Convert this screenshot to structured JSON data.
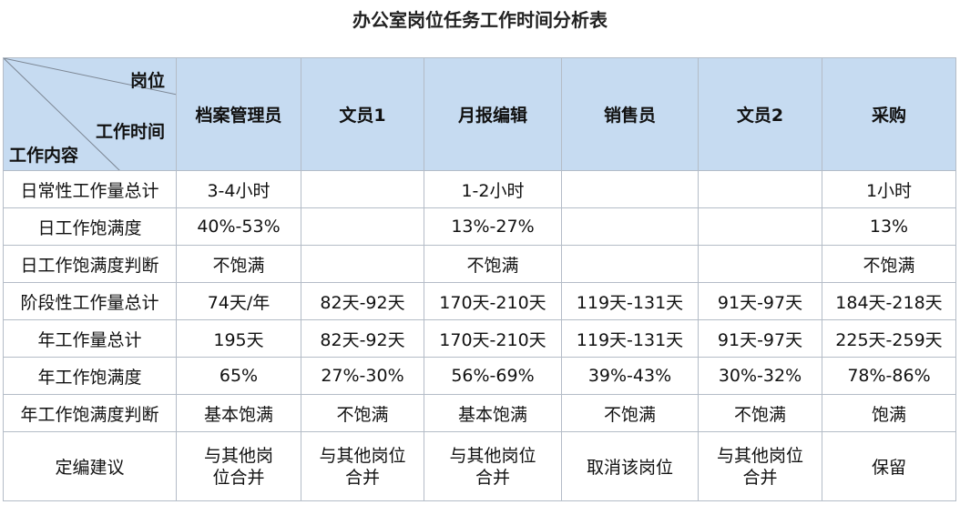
{
  "title": "办公室岗位任务工作时间分析表",
  "header": {
    "corner_position": "岗位",
    "corner_time": "工作时间",
    "corner_content": "工作内容",
    "columns": [
      "档案管理员",
      "文员1",
      "月报编辑",
      "销售员",
      "文员2",
      "采购"
    ]
  },
  "rows": [
    {
      "label": "日常性工作量总计",
      "cells": [
        "3-4小时",
        "",
        "1-2小时",
        "",
        "",
        "1小时"
      ]
    },
    {
      "label": "日工作饱满度",
      "cells": [
        "40%-53%",
        "",
        "13%-27%",
        "",
        "",
        "13%"
      ]
    },
    {
      "label": "日工作饱满度判断",
      "cells": [
        "不饱满",
        "",
        "不饱满",
        "",
        "",
        "不饱满"
      ]
    },
    {
      "label": "阶段性工作量总计",
      "cells": [
        "74天/年",
        "82天-92天",
        "170天-210天",
        "119天-131天",
        "91天-97天",
        "184天-218天"
      ]
    },
    {
      "label": "年工作量总计",
      "cells": [
        "195天",
        "82天-92天",
        "170天-210天",
        "119天-131天",
        "91天-97天",
        "225天-259天"
      ]
    },
    {
      "label": "年工作饱满度",
      "cells": [
        "65%",
        "27%-30%",
        "56%-69%",
        "39%-43%",
        "30%-32%",
        "78%-86%"
      ]
    },
    {
      "label": "年工作饱满度判断",
      "cells": [
        "基本饱满",
        "不饱满",
        "基本饱满",
        "不饱满",
        "不饱满",
        "饱满"
      ]
    },
    {
      "label": "定编建议",
      "cells": [
        "与其他岗位合并",
        "与其他岗位合并",
        "与其他岗位合并",
        "取消该岗位",
        "与其他岗位合并",
        "保留"
      ]
    }
  ]
}
